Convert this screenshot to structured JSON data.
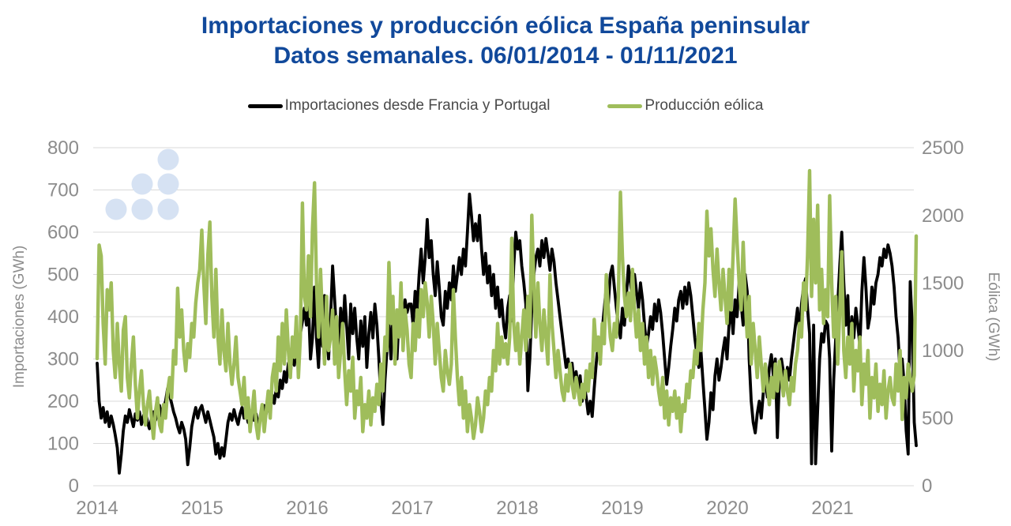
{
  "title": {
    "line1": "Importaciones y producción eólica España peninsular",
    "line2": "Datos semanales. 06/01/2014 - 01/11/2021"
  },
  "legend": {
    "items": [
      {
        "label": "Importaciones desde Francia y Portugal",
        "color": "#000000"
      },
      {
        "label": "Producción eólica",
        "color": "#9fbd5b"
      }
    ]
  },
  "colors": {
    "title_blue": "#11499b",
    "imports_line": "#000000",
    "wind_line": "#9fbd5b",
    "gridline": "#d9d9d9",
    "tick_text": "#8c8c8c",
    "legend_text": "#4a4a4a",
    "logo_dots": "#d6e2f3"
  },
  "chart_data": {
    "type": "line",
    "title": "Importaciones y producción eólica España peninsular",
    "subtitle": "Datos semanales. 06/01/2014 - 01/11/2021",
    "frequency": "weekly",
    "x_start": "06/01/2014",
    "x_end": "01/11/2021",
    "points": 408,
    "grid": true,
    "legend_position": "top",
    "x_tick_labels": [
      "2014",
      "2015",
      "2016",
      "2017",
      "2018",
      "2019",
      "2020",
      "2021"
    ],
    "left_axis": {
      "label": "Importaciones (GWh)",
      "min": 0,
      "max": 800,
      "step": 100,
      "ticks": [
        0,
        100,
        200,
        300,
        400,
        500,
        600,
        700,
        800
      ]
    },
    "right_axis": {
      "label": "Eólica (GWh)",
      "min": 0,
      "max": 2500,
      "step": 500,
      "ticks": [
        0,
        500,
        1000,
        1500,
        2000,
        2500
      ]
    },
    "logo_dots": {
      "color": "#d6e2f3",
      "radius": 13.5,
      "centers": [
        [
          147,
          265
        ],
        [
          180,
          265
        ],
        [
          213,
          265
        ],
        [
          180,
          233
        ],
        [
          213,
          233
        ],
        [
          213,
          202
        ]
      ]
    },
    "series": [
      {
        "id": "importaciones",
        "name": "Importaciones desde Francia y Portugal",
        "axis": "left",
        "color": "#000000",
        "width": 3.8,
        "values": [
          290,
          200,
          160,
          185,
          150,
          175,
          140,
          165,
          145,
          120,
          90,
          30,
          75,
          130,
          165,
          150,
          180,
          160,
          140,
          170,
          155,
          175,
          145,
          165,
          180,
          150,
          135,
          160,
          175,
          155,
          170,
          190,
          165,
          185,
          200,
          230,
          215,
          195,
          175,
          160,
          140,
          125,
          150,
          135,
          110,
          50,
          90,
          140,
          165,
          185,
          160,
          180,
          190,
          170,
          150,
          175,
          155,
          135,
          115,
          75,
          100,
          65,
          90,
          70,
          110,
          150,
          170,
          155,
          180,
          160,
          145,
          170,
          185,
          160,
          175,
          150,
          165,
          180,
          155,
          170,
          145,
          160,
          175,
          190,
          170,
          200,
          185,
          215,
          195,
          230,
          210,
          250,
          230,
          270,
          245,
          290,
          265,
          310,
          285,
          330,
          305,
          360,
          390,
          420,
          380,
          430,
          300,
          350,
          470,
          350,
          280,
          400,
          330,
          450,
          380,
          300,
          400,
          520,
          440,
          360,
          300,
          420,
          350,
          450,
          380,
          300,
          430,
          360,
          420,
          350,
          300,
          390,
          330,
          400,
          280,
          360,
          410,
          350,
          430,
          380,
          300,
          200,
          145,
          250,
          320,
          380,
          300,
          420,
          350,
          300,
          400,
          430,
          390,
          440,
          410,
          430,
          430,
          380,
          460,
          420,
          500,
          560,
          480,
          540,
          630,
          540,
          580,
          500,
          450,
          530,
          470,
          400,
          380,
          460,
          420,
          480,
          440,
          520,
          460,
          500,
          540,
          500,
          560,
          520,
          600,
          690,
          640,
          580,
          620,
          580,
          640,
          560,
          500,
          550,
          480,
          520,
          450,
          500,
          420,
          470,
          400,
          440,
          380,
          350,
          420,
          450,
          390,
          520,
          600,
          560,
          580,
          520,
          480,
          430,
          225,
          300,
          420,
          500,
          540,
          560,
          520,
          580,
          540,
          585,
          550,
          510,
          560,
          530,
          480,
          440,
          400,
          360,
          320,
          280,
          300,
          260,
          290,
          240,
          270,
          230,
          260,
          200,
          240,
          210,
          170,
          200,
          164,
          230,
          290,
          340,
          310,
          370,
          420,
          470,
          430,
          500,
          520,
          470,
          420,
          380,
          350,
          420,
          380,
          450,
          520,
          480,
          440,
          500,
          460,
          420,
          480,
          440,
          380,
          330,
          360,
          400,
          370,
          430,
          390,
          440,
          410,
          360,
          300,
          240,
          280,
          330,
          370,
          420,
          390,
          440,
          460,
          420,
          470,
          430,
          480,
          450,
          400,
          350,
          310,
          280,
          320,
          250,
          180,
          110,
          150,
          220,
          180,
          260,
          300,
          250,
          280,
          320,
          350,
          300,
          380,
          420,
          360,
          440,
          400,
          480,
          430,
          380,
          500,
          460,
          300,
          200,
          150,
          125,
          170,
          200,
          160,
          220,
          250,
          210,
          280,
          310,
          260,
          300,
          114,
          250,
          300,
          270,
          230,
          280,
          250,
          300,
          340,
          380,
          420,
          360,
          430,
          470,
          490,
          420,
          360,
          52,
          380,
          52,
          180,
          300,
          360,
          340,
          390,
          380,
          300,
          82,
          250,
          350,
          430,
          520,
          600,
          480,
          380,
          450,
          300,
          400,
          350,
          420,
          380,
          330,
          460,
          540,
          470,
          373,
          400,
          470,
          430,
          480,
          500,
          540,
          520,
          560,
          540,
          570,
          550,
          520,
          470,
          400,
          350,
          265,
          300,
          243,
          130,
          75,
          483,
          380,
          150,
          95
        ]
      },
      {
        "id": "eolica",
        "name": "Producción eólica",
        "axis": "right",
        "color": "#9fbd5b",
        "width": 4.4,
        "values": [
          940,
          1780,
          1700,
          1200,
          900,
          1450,
          1300,
          1500,
          1000,
          800,
          1200,
          900,
          700,
          1150,
          1250,
          800,
          650,
          900,
          1100,
          750,
          500,
          700,
          850,
          600,
          450,
          600,
          700,
          500,
          350,
          550,
          650,
          450,
          400,
          600,
          500,
          700,
          800,
          650,
          1000,
          900,
          1460,
          1100,
          1300,
          1000,
          850,
          1050,
          950,
          1200,
          1100,
          1350,
          1500,
          1600,
          1890,
          1500,
          1200,
          1700,
          1950,
          1400,
          1100,
          1600,
          1100,
          900,
          1300,
          1000,
          850,
          1200,
          900,
          750,
          900,
          1100,
          800,
          700,
          600,
          800,
          500,
          650,
          400,
          550,
          700,
          450,
          350,
          500,
          600,
          400,
          550,
          700,
          500,
          800,
          900,
          700,
          1100,
          850,
          1200,
          900,
          1300,
          1000,
          800,
          1100,
          950,
          1250,
          800,
          1100,
          2090,
          1400,
          1300,
          1700,
          1250,
          1900,
          2240,
          1500,
          1100,
          1600,
          1200,
          900,
          1400,
          1000,
          1100,
          1300,
          900,
          1250,
          800,
          1000,
          1200,
          850,
          600,
          850,
          700,
          950,
          500,
          700,
          600,
          800,
          400,
          600,
          500,
          700,
          450,
          650,
          550,
          750,
          600,
          900,
          700,
          1100,
          1000,
          1650,
          1200,
          1400,
          900,
          1300,
          1100,
          1500,
          1000,
          1300,
          1150,
          900,
          800,
          1200,
          1000,
          1300,
          1100,
          1450,
          1250,
          1500,
          1350,
          1100,
          1400,
          1200,
          900,
          1200,
          1000,
          800,
          700,
          1000,
          850,
          750,
          900,
          1450,
          1100,
          800,
          600,
          800,
          500,
          700,
          400,
          600,
          500,
          350,
          450,
          650,
          550,
          400,
          500,
          700,
          600,
          800,
          700,
          1000,
          850,
          1200,
          900,
          1100,
          950,
          1050,
          900,
          1100,
          1830,
          1200,
          1000,
          1200,
          900,
          1100,
          1300,
          1000,
          1400,
          1100,
          2000,
          1500,
          1100,
          1500,
          1200,
          1000,
          1300,
          1100,
          900,
          1560,
          1200,
          1000,
          800,
          1000,
          850,
          700,
          630,
          820,
          700,
          900,
          750,
          650,
          800,
          700,
          600,
          750,
          650,
          850,
          700,
          900,
          800,
          1230,
          1000,
          1100,
          900,
          1200,
          1050,
          1560,
          1300,
          1100,
          1000,
          1200,
          1100,
          1400,
          2170,
          1700,
          1400,
          1250,
          1425,
          1220,
          1600,
          1300,
          1100,
          1300,
          1000,
          1200,
          900,
          1100,
          800,
          1000,
          750,
          950,
          850,
          700,
          600,
          800,
          500,
          700,
          450,
          650,
          550,
          700,
          500,
          650,
          400,
          600,
          550,
          750,
          650,
          850,
          800,
          1000,
          900,
          1200,
          1000,
          1300,
          1500,
          2030,
          1700,
          1900,
          1600,
          1400,
          1750,
          1500,
          1300,
          1600,
          1400,
          1200,
          1600,
          1300,
          1700,
          2120,
          1800,
          1500,
          1300,
          1800,
          1400,
          1100,
          1400,
          900,
          1200,
          1000,
          800,
          1100,
          900,
          700,
          900,
          750,
          600,
          800,
          650,
          900,
          700,
          920,
          800,
          665,
          850,
          700,
          600,
          800,
          700,
          900,
          1000,
          1200,
          1100,
          1500,
          1300,
          1700,
          2330,
          1400,
          1970,
          1500,
          2075,
          1300,
          1600,
          1200,
          1450,
          1250,
          2145,
          1500,
          1100,
          1400,
          900,
          1300,
          1730,
          1000,
          800,
          1100,
          900,
          1200,
          700,
          1000,
          850,
          1100,
          600,
          900,
          750,
          1000,
          500,
          800,
          650,
          900,
          550,
          750,
          600,
          850,
          500,
          700,
          800,
          650,
          600,
          900,
          700,
          1000,
          490,
          800,
          650,
          900,
          800,
          700,
          816,
          1847
        ]
      }
    ]
  }
}
